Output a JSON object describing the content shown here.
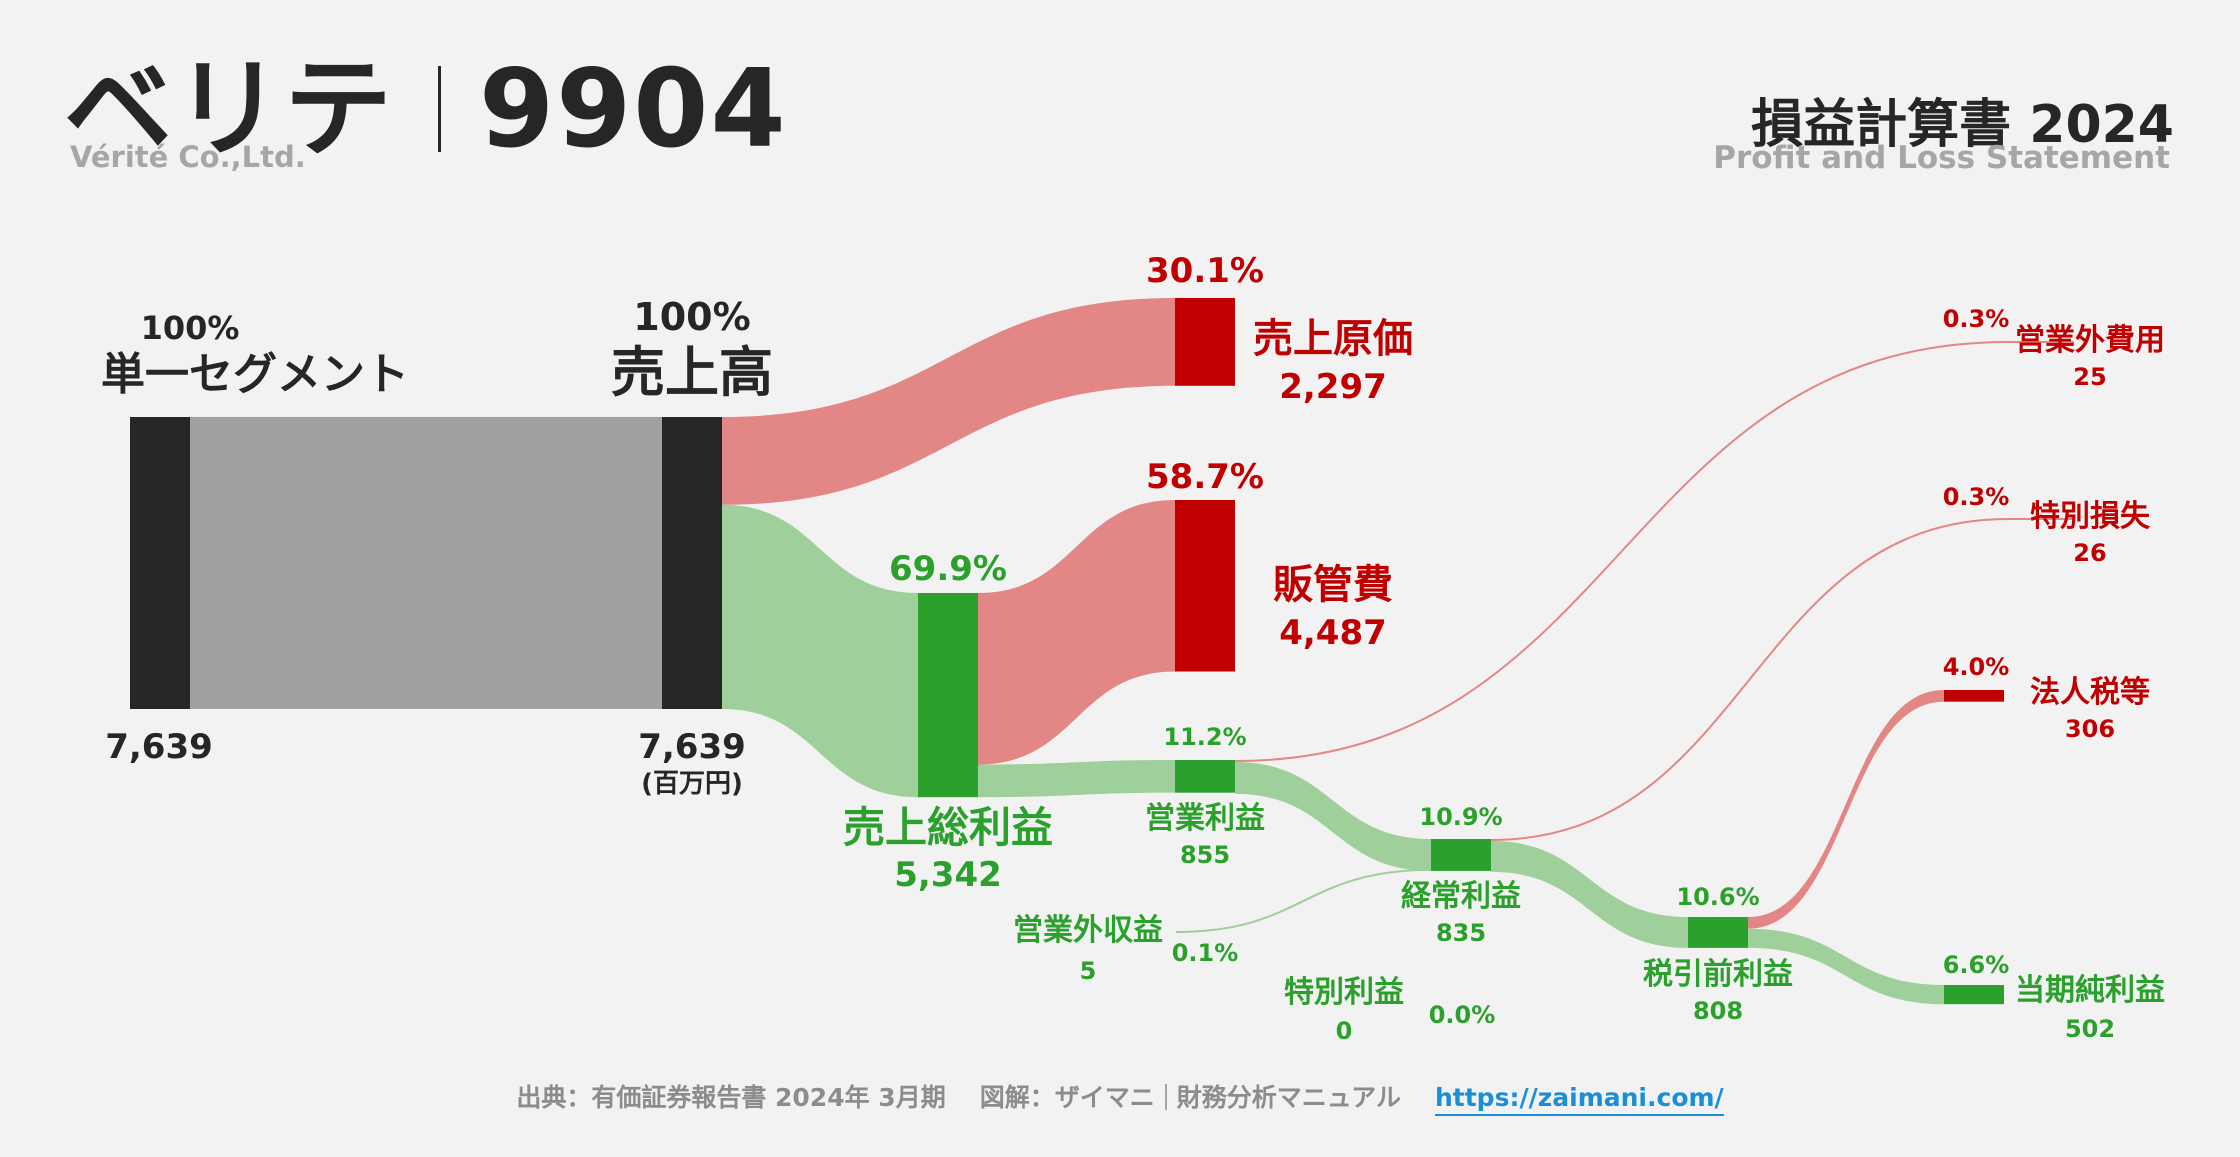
{
  "header": {
    "company_name": "ベリテ",
    "ticker": "9904",
    "company_en": "Vérité Co.,Ltd.",
    "statement_title": "損益計算書 2024",
    "statement_en": "Profit and Loss Statement"
  },
  "footer": {
    "source": "出典：有価証券報告書 2024年 3月期",
    "credit": "図解：ザイマニ",
    "site_name": "財務分析マニュアル",
    "url": "https://zaimani.com/"
  },
  "chart_data": {
    "type": "sankey",
    "unit": "(百万円)",
    "colors": {
      "neutral": "#262626",
      "profit": "#2ca02c",
      "cost": "#c00000",
      "profit_flow": "#9fcf9a",
      "cost_flow": "#e28686",
      "segment_flow": "#a0a0a0"
    },
    "nodes": [
      {
        "id": "segment",
        "name": "単一セグメント",
        "value": 7639,
        "pct": "100%",
        "kind": "neutral"
      },
      {
        "id": "revenue",
        "name": "売上高",
        "value": 7639,
        "pct": "100%",
        "kind": "neutral"
      },
      {
        "id": "cogs",
        "name": "売上原価",
        "value": 2297,
        "pct": "30.1%",
        "kind": "cost"
      },
      {
        "id": "gross",
        "name": "売上総利益",
        "value": 5342,
        "pct": "69.9%",
        "kind": "profit"
      },
      {
        "id": "sga",
        "name": "販管費",
        "value": 4487,
        "pct": "58.7%",
        "kind": "cost"
      },
      {
        "id": "op",
        "name": "営業利益",
        "value": 855,
        "pct": "11.2%",
        "kind": "profit"
      },
      {
        "id": "nonop_inc",
        "name": "営業外収益",
        "value": 5,
        "pct": "0.1%",
        "kind": "profit"
      },
      {
        "id": "nonop_exp",
        "name": "営業外費用",
        "value": 25,
        "pct": "0.3%",
        "kind": "cost"
      },
      {
        "id": "ordinary",
        "name": "経常利益",
        "value": 835,
        "pct": "10.9%",
        "kind": "profit"
      },
      {
        "id": "ext_gain",
        "name": "特別利益",
        "value": 0,
        "pct": "0.0%",
        "kind": "profit"
      },
      {
        "id": "ext_loss",
        "name": "特別損失",
        "value": 26,
        "pct": "0.3%",
        "kind": "cost"
      },
      {
        "id": "pretax",
        "name": "税引前利益",
        "value": 808,
        "pct": "10.6%",
        "kind": "profit"
      },
      {
        "id": "tax",
        "name": "法人税等",
        "value": 306,
        "pct": "4.0%",
        "kind": "cost"
      },
      {
        "id": "net",
        "name": "当期純利益",
        "value": 502,
        "pct": "6.6%",
        "kind": "profit"
      }
    ],
    "links": [
      {
        "source": "segment",
        "target": "revenue",
        "value": 7639
      },
      {
        "source": "revenue",
        "target": "cogs",
        "value": 2297
      },
      {
        "source": "revenue",
        "target": "gross",
        "value": 5342
      },
      {
        "source": "gross",
        "target": "sga",
        "value": 4487
      },
      {
        "source": "gross",
        "target": "op",
        "value": 855
      },
      {
        "source": "op",
        "target": "nonop_exp",
        "value": 25
      },
      {
        "source": "op",
        "target": "ordinary",
        "value": 835
      },
      {
        "source": "nonop_inc",
        "target": "ordinary",
        "value": 5
      },
      {
        "source": "ordinary",
        "target": "ext_loss",
        "value": 26
      },
      {
        "source": "ordinary",
        "target": "pretax",
        "value": 808
      },
      {
        "source": "pretax",
        "target": "tax",
        "value": 306
      },
      {
        "source": "pretax",
        "target": "net",
        "value": 502
      }
    ]
  }
}
